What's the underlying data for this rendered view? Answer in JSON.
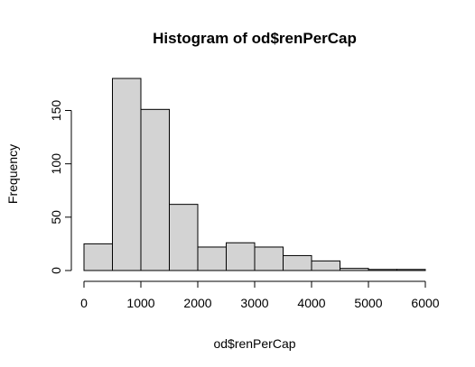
{
  "chart_data": {
    "type": "bar",
    "title": "Histogram of od$renPerCap",
    "xlabel": "od$renPerCap",
    "ylabel": "Frequency",
    "bin_edges": [
      0,
      500,
      1000,
      1500,
      2000,
      2500,
      3000,
      3500,
      4000,
      4500,
      5000,
      5500,
      6000
    ],
    "values": [
      25,
      180,
      151,
      62,
      22,
      26,
      22,
      14,
      9,
      2,
      1,
      1
    ],
    "xlim": [
      0,
      6000
    ],
    "ylim": [
      0,
      180
    ],
    "x_ticks": [
      0,
      1000,
      2000,
      3000,
      4000,
      5000,
      6000
    ],
    "y_ticks": [
      0,
      50,
      100,
      150
    ],
    "bar_fill": "#d3d3d3",
    "bar_stroke": "#000000",
    "grid": false,
    "legend": "none"
  }
}
